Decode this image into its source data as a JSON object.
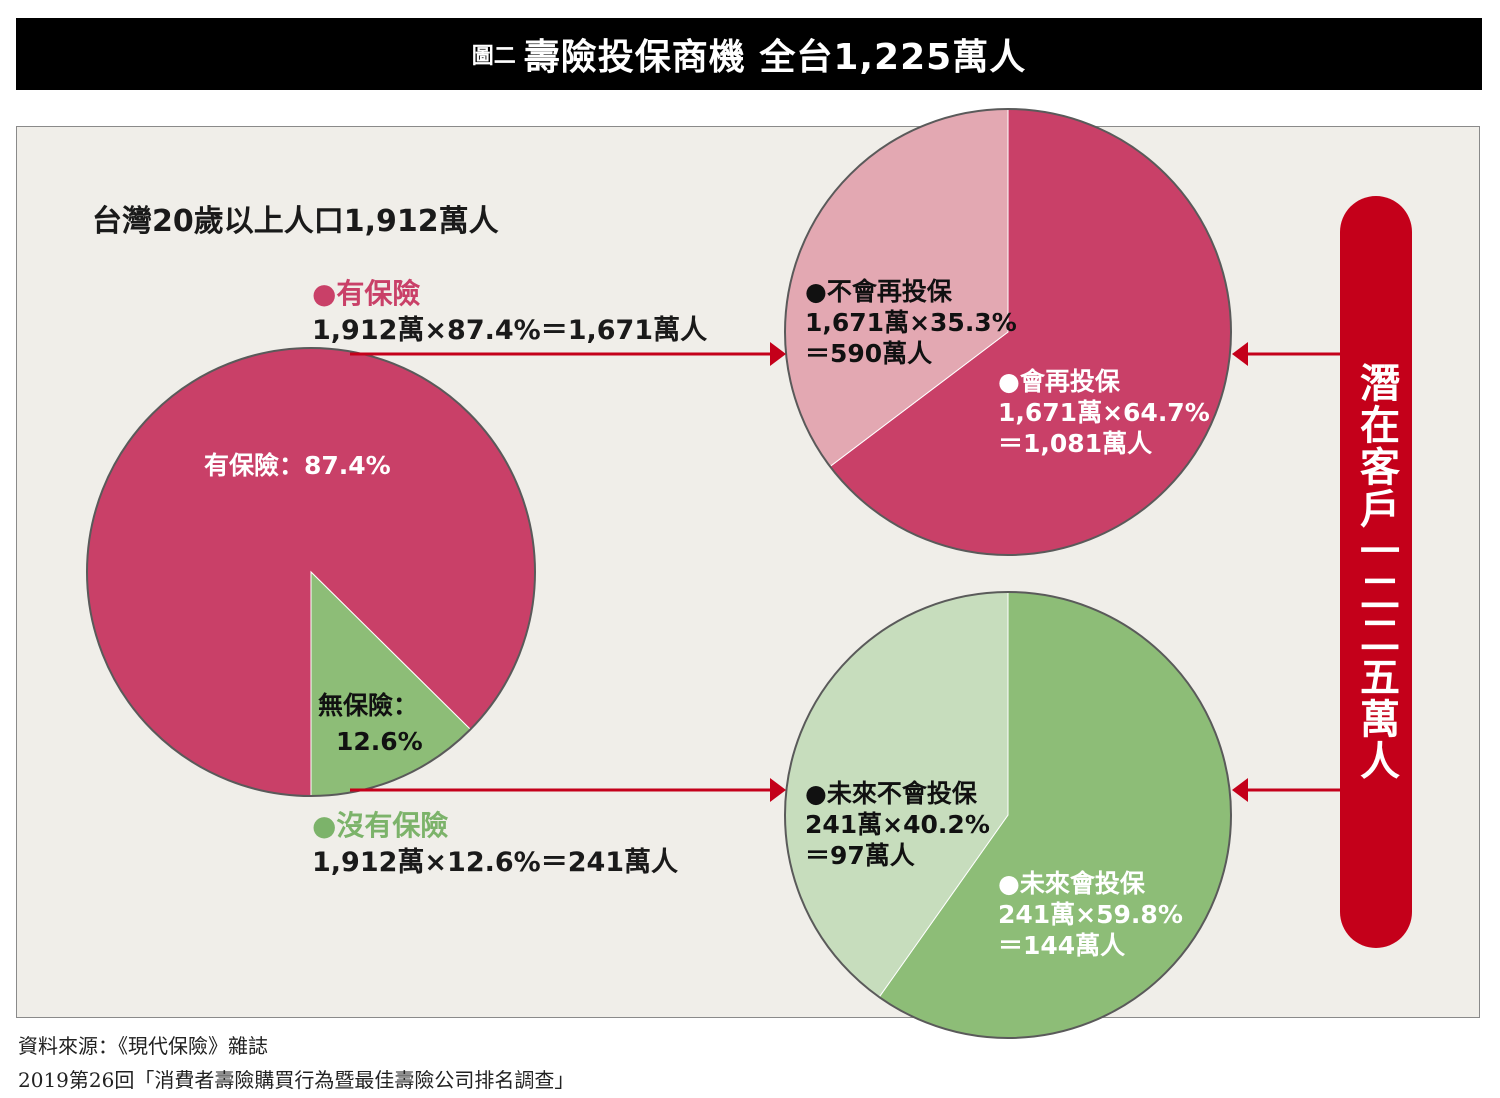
{
  "title": {
    "prefix": "圖二",
    "main": "壽險投保商機 全台1,225萬人"
  },
  "population_text": "台灣20歲以上人口1,912萬人",
  "insured": {
    "label": "●有保險",
    "calc": "1,912萬×87.4%＝1,671萬人",
    "pie_label": "有保險：87.4%"
  },
  "uninsured": {
    "label": "●沒有保險",
    "calc": "1,912萬×12.6%＝241萬人",
    "pie_label_1": "無保險：",
    "pie_label_2": "12.6%"
  },
  "insured_pie": {
    "not_again": {
      "line1": "●不會再投保",
      "line2": "1,671萬×35.3%",
      "line3": "＝590萬人"
    },
    "again": {
      "line1": "●會再投保",
      "line2": "1,671萬×64.7%",
      "line3": "＝1,081萬人"
    }
  },
  "uninsured_pie": {
    "never": {
      "line1": "●未來不會投保",
      "line2": "241萬×40.2%",
      "line3": "＝97萬人"
    },
    "will": {
      "line1": "●未來會投保",
      "line2": "241萬×59.8%",
      "line3": "＝144萬人"
    }
  },
  "potential_customers": "潛在客戶一二二五萬人",
  "source": {
    "line1": "資料來源：《現代保險》雜誌",
    "line2": "2019第26回「消費者壽險購買行為暨最佳壽險公司排名調查」"
  },
  "colors": {
    "insured": "#c94068",
    "insured_light": "#e3a8b2",
    "uninsured": "#8dbd77",
    "uninsured_light": "#c7ddbd",
    "arrow": "#c4001a"
  },
  "chart_data": [
    {
      "type": "pie",
      "categories": [
        "有保險",
        "無保險"
      ],
      "values": [
        87.4,
        12.6
      ]
    },
    {
      "type": "pie",
      "categories": [
        "會再投保",
        "不會再投保"
      ],
      "values": [
        64.7,
        35.3
      ]
    },
    {
      "type": "pie",
      "categories": [
        "未來會投保",
        "未來不會投保"
      ],
      "values": [
        59.8,
        40.2
      ]
    }
  ]
}
